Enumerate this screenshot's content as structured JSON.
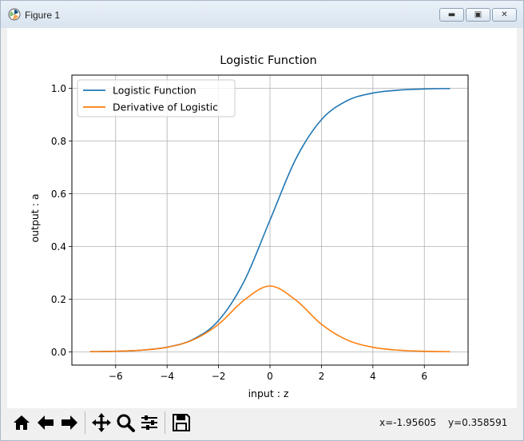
{
  "window": {
    "title": "Figure 1"
  },
  "chart_data": {
    "type": "line",
    "title": "Logistic Function",
    "xlabel": "input : z",
    "ylabel": "output : a",
    "xlim": [
      -7.7,
      7.7
    ],
    "ylim": [
      -0.05,
      1.05
    ],
    "xticks": [
      -6,
      -4,
      -2,
      0,
      2,
      4,
      6
    ],
    "xtick_labels": [
      "−6",
      "−4",
      "−2",
      "0",
      "2",
      "4",
      "6"
    ],
    "yticks": [
      0.0,
      0.2,
      0.4,
      0.6,
      0.8,
      1.0
    ],
    "ytick_labels": [
      "0.0",
      "0.2",
      "0.4",
      "0.6",
      "0.8",
      "1.0"
    ],
    "grid": true,
    "legend": "upper-left",
    "series": [
      {
        "name": "Logistic Function",
        "color": "#1f77b4",
        "x": [
          -7,
          -6,
          -5,
          -4,
          -3,
          -2,
          -1,
          0,
          1,
          2,
          3,
          4,
          5,
          6,
          7
        ],
        "y": [
          0.0009,
          0.0025,
          0.0067,
          0.018,
          0.047,
          0.119,
          0.269,
          0.5,
          0.731,
          0.881,
          0.953,
          0.982,
          0.993,
          0.9975,
          0.9991
        ]
      },
      {
        "name": "Derivative of Logistic",
        "color": "#ff7f0e",
        "x": [
          -7,
          -6,
          -5,
          -4,
          -3,
          -2,
          -1,
          0,
          1,
          2,
          3,
          4,
          5,
          6,
          7
        ],
        "y": [
          0.0009,
          0.0025,
          0.0066,
          0.0177,
          0.0452,
          0.105,
          0.197,
          0.25,
          0.197,
          0.105,
          0.0452,
          0.0177,
          0.0066,
          0.0025,
          0.0009
        ]
      }
    ]
  },
  "toolbar": {
    "icons": [
      "home-icon",
      "back-arrow-icon",
      "forward-arrow-icon",
      "pan-icon",
      "zoom-icon",
      "subplots-icon",
      "save-icon"
    ],
    "x_readout": "x=-1.95605",
    "y_readout": "y=0.358591"
  }
}
